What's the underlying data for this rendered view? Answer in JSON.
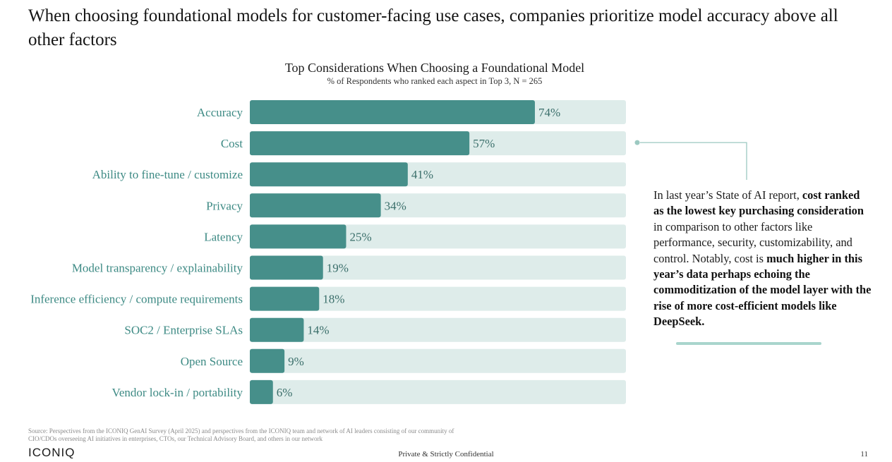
{
  "headline": "When choosing foundational models for customer-facing use cases, companies prioritize model accuracy above all other factors",
  "chart_data": {
    "type": "bar",
    "orientation": "horizontal",
    "title": "Top Considerations When Choosing a Foundational Model",
    "subtitle": "% of Respondents who ranked each aspect in Top 3, N = 265",
    "categories": [
      "Accuracy",
      "Cost",
      "Ability to fine-tune / customize",
      "Privacy",
      "Latency",
      "Model transparency / explainability",
      "Inference efficiency / compute requirements",
      "SOC2 / Enterprise SLAs",
      "Open Source",
      "Vendor lock-in / portability"
    ],
    "values": [
      74,
      57,
      41,
      34,
      25,
      19,
      18,
      14,
      9,
      6
    ],
    "value_labels": [
      "74%",
      "57%",
      "41%",
      "34%",
      "25%",
      "19%",
      "18%",
      "14%",
      "9%",
      "6%"
    ],
    "xlim": [
      0,
      100
    ],
    "unit": "%",
    "xlabel": "",
    "ylabel": "",
    "grid": false,
    "colors": {
      "bar": "#468f8a",
      "track": "#deecea",
      "label": "#3d8a84",
      "value": "#3b6f6b",
      "connector": "#9cc9c1"
    }
  },
  "callout": {
    "p1": "In last year’s State of AI report, ",
    "b1": "cost ranked as the lowest key purchasing consideration",
    "p2": " in comparison to other factors like performance, security, customizability, and control.  Notably, cost is ",
    "b2": "much higher in this year’s data perhaps echoing the commoditization of the model layer with the rise of more cost-efficient models like DeepSeek."
  },
  "footer": {
    "source_line1": "Source: Perspectives from the ICONIQ GenAI Survey (April 2025) and perspectives from the ICONIQ team and network of AI leaders consisting of our community of",
    "source_line2": "CIO/CDOs overseeing AI initiatives in enterprises, CTOs, our Technical Advisory Board, and others in our network",
    "logo": "ICONIQ",
    "confidential": "Private & Strictly Confidential",
    "page_number": "11"
  }
}
